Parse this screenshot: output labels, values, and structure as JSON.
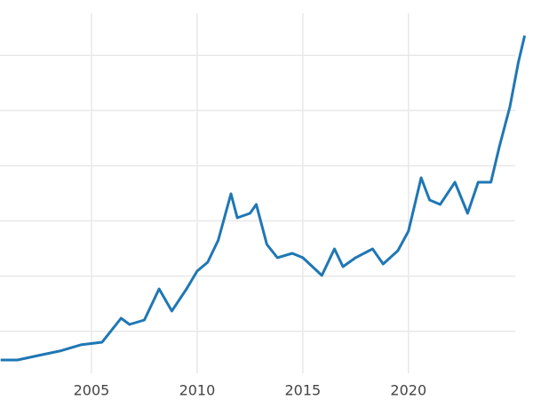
{
  "chart_data": {
    "type": "line",
    "x": [
      2000.7,
      2001.5,
      2002.5,
      2003.5,
      2004.5,
      2005.5,
      2006.4,
      2006.8,
      2007.5,
      2008.2,
      2008.8,
      2009.5,
      2010.0,
      2010.5,
      2011.0,
      2011.6,
      2011.9,
      2012.5,
      2012.8,
      2013.3,
      2013.8,
      2014.5,
      2015.0,
      2015.9,
      2016.5,
      2016.9,
      2017.5,
      2018.3,
      2018.8,
      2019.5,
      2020.0,
      2020.6,
      2021.0,
      2021.5,
      2022.2,
      2022.8,
      2023.3,
      2023.9,
      2024.3,
      2024.8,
      2025.2,
      2025.5
    ],
    "series": [
      {
        "color": "#1f77b4",
        "values": [
          241,
          241,
          282,
          322,
          378,
          402,
          619,
          563,
          603,
          885,
          684,
          885,
          1046,
          1126,
          1327,
          1746,
          1529,
          1569,
          1649,
          1287,
          1167,
          1207,
          1167,
          1006,
          1247,
          1086,
          1167,
          1247,
          1110,
          1231,
          1408,
          1891,
          1690,
          1649,
          1851,
          1569,
          1851,
          1851,
          2172,
          2534,
          2936,
          3178
        ]
      }
    ],
    "xlim": [
      2000.67,
      2025.6
    ],
    "xticks": [
      2005,
      2010,
      2015,
      2020
    ],
    "ylim": [
      120,
      3380
    ],
    "yticks": [
      500,
      1000,
      1500,
      2000,
      2500,
      3000
    ],
    "grid": true
  }
}
